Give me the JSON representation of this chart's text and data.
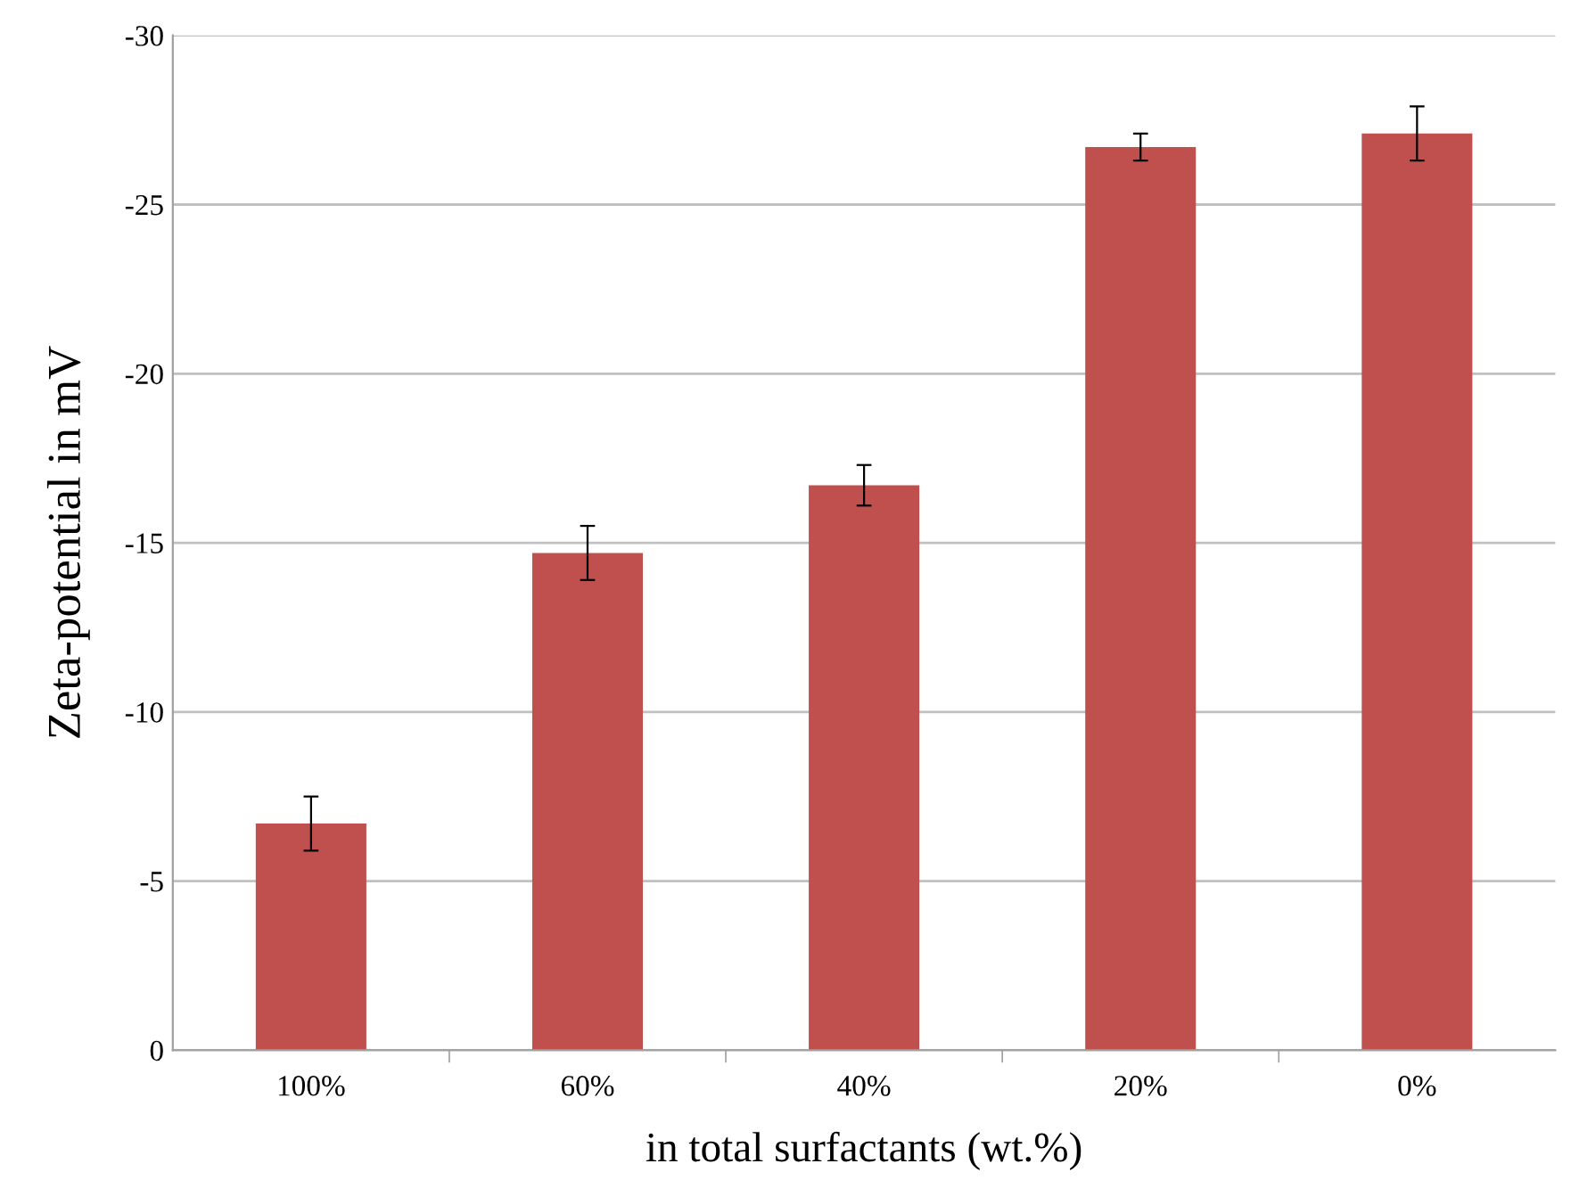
{
  "chart_data": {
    "type": "bar",
    "xlabel": "in total surfactants (wt.%)",
    "ylabel": "Zeta-potential in mV",
    "categories": [
      "100%",
      "60%",
      "40%",
      "20%",
      "0%"
    ],
    "values": [
      -6.7,
      -14.7,
      -16.7,
      -26.7,
      -27.1
    ],
    "errors": [
      0.8,
      0.8,
      0.6,
      0.4,
      0.8
    ],
    "color": "#c0504d",
    "ylim": [
      0,
      -30
    ],
    "yticks": [
      0,
      -5,
      -10,
      -15,
      -20,
      -25,
      -30
    ],
    "grid": "y"
  }
}
